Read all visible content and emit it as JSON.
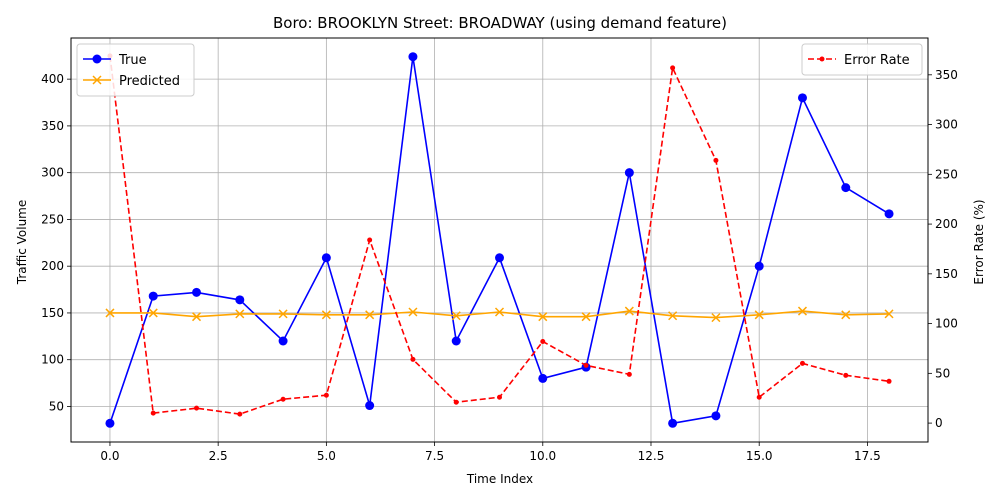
{
  "chart_data": {
    "type": "line",
    "title": "Boro: BROOKLYN Street: BROADWAY (using demand feature)",
    "xlabel": "Time Index",
    "ylabel": "Traffic Volume",
    "y2label": "Error Rate (%)",
    "grid": true,
    "x": [
      0,
      1,
      2,
      3,
      4,
      5,
      6,
      7,
      8,
      9,
      10,
      11,
      12,
      13,
      14,
      15,
      16,
      17,
      18
    ],
    "xlim": [
      -0.9,
      18.9
    ],
    "ylim": [
      12,
      444
    ],
    "y2lim": [
      -19,
      387
    ],
    "xticks": [
      0.0,
      2.5,
      5.0,
      7.5,
      10.0,
      12.5,
      15.0,
      17.5
    ],
    "xtick_labels": [
      "0.0",
      "2.5",
      "5.0",
      "7.5",
      "10.0",
      "12.5",
      "15.0",
      "17.5"
    ],
    "yticks": [
      50,
      100,
      150,
      200,
      250,
      300,
      350,
      400
    ],
    "y2ticks": [
      0,
      50,
      100,
      150,
      200,
      250,
      300,
      350
    ],
    "legend_left": "top-left",
    "legend_right": "top-right",
    "series": [
      {
        "name": "True",
        "axis": "left",
        "color": "#0000ff",
        "marker": "circle",
        "style": "solid",
        "values": [
          32,
          168,
          172,
          164,
          120,
          209,
          51,
          424,
          120,
          209,
          80,
          92,
          300,
          32,
          40,
          200,
          380,
          284,
          256
        ]
      },
      {
        "name": "Predicted",
        "axis": "left",
        "color": "#ffa500",
        "marker": "x",
        "style": "solid",
        "values": [
          150,
          150,
          146,
          149,
          149,
          148,
          148,
          151,
          147,
          151,
          146,
          146,
          152,
          147,
          145,
          148,
          152,
          148,
          149
        ]
      },
      {
        "name": "Error Rate",
        "axis": "right",
        "color": "#ff0000",
        "marker": "dot",
        "style": "dashed",
        "values": [
          369,
          10,
          15,
          9,
          24,
          28,
          184,
          64,
          21,
          26,
          82,
          58,
          49,
          357,
          264,
          26,
          60,
          48,
          42
        ]
      }
    ]
  }
}
